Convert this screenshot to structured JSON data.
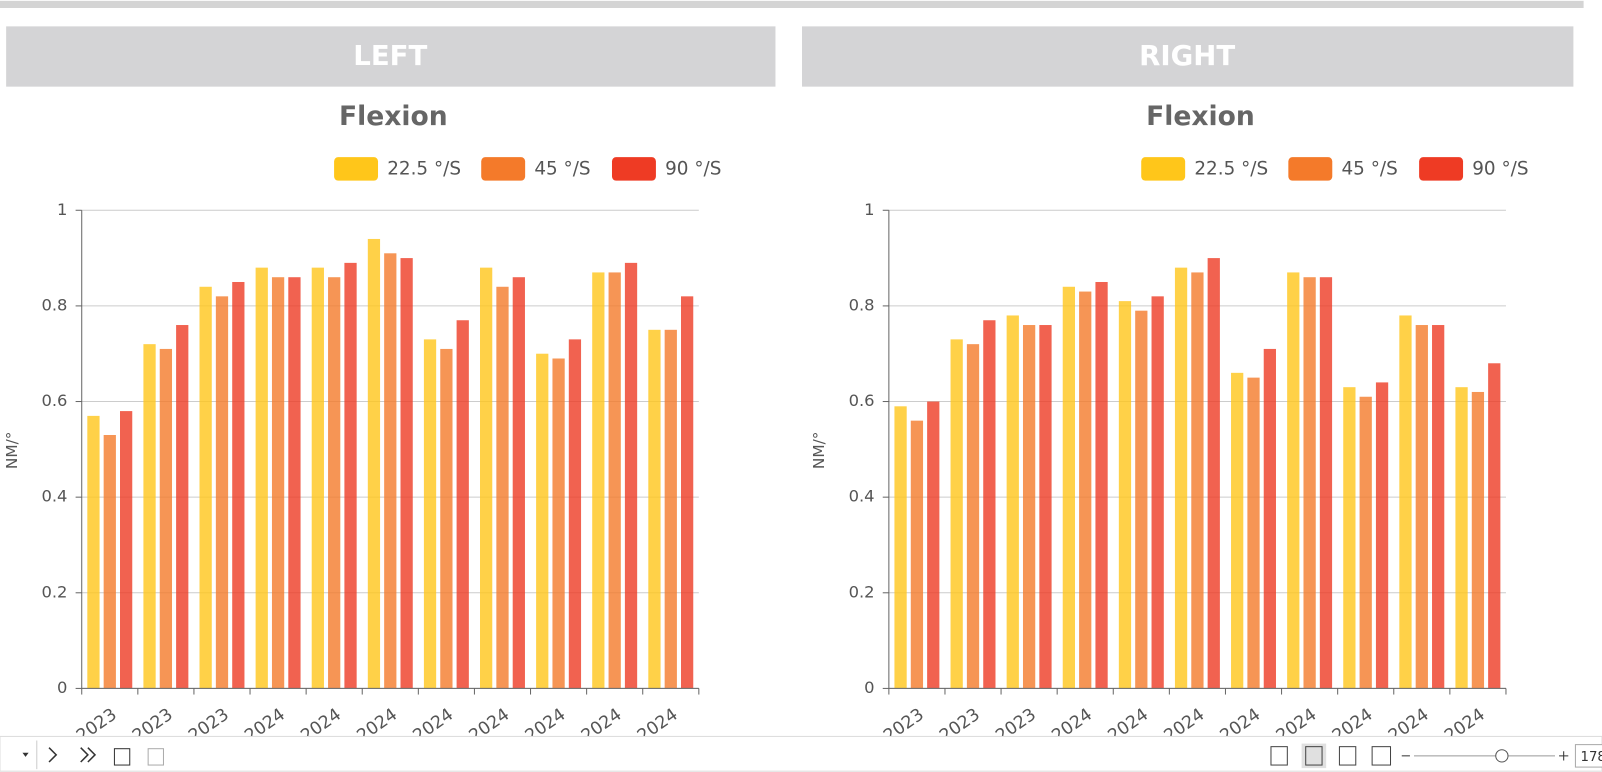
{
  "panels": [
    {
      "header": "LEFT"
    },
    {
      "header": "RIGHT"
    }
  ],
  "chart_data": [
    {
      "type": "bar",
      "title": "Flexion",
      "y_label": "NM/°",
      "categories": [
        "2023",
        "2023",
        "2023",
        "2024",
        "2024",
        "2024",
        "2024",
        "2024",
        "2024",
        "2024",
        "2024"
      ],
      "series": [
        {
          "name": "22.5 °/S",
          "color": "#ffc61a",
          "values": [
            0.57,
            0.72,
            0.84,
            0.88,
            0.88,
            0.94,
            0.73,
            0.88,
            0.7,
            0.87,
            0.75
          ]
        },
        {
          "name": "45 °/S",
          "color": "#f47a2a",
          "values": [
            0.53,
            0.71,
            0.82,
            0.86,
            0.86,
            0.91,
            0.71,
            0.84,
            0.69,
            0.87,
            0.75
          ]
        },
        {
          "name": "90 °/S",
          "color": "#ee3b24",
          "values": [
            0.58,
            0.76,
            0.85,
            0.86,
            0.89,
            0.9,
            0.77,
            0.86,
            0.73,
            0.89,
            0.82
          ]
        }
      ],
      "ylim": [
        0,
        1
      ],
      "yticks": [
        0,
        0.2,
        0.4,
        0.6,
        0.8,
        1
      ],
      "grid": true
    },
    {
      "type": "bar",
      "title": "Flexion",
      "y_label": "NM/°",
      "categories": [
        "2023",
        "2023",
        "2023",
        "2024",
        "2024",
        "2024",
        "2024",
        "2024",
        "2024",
        "2024",
        "2024"
      ],
      "series": [
        {
          "name": "22.5 °/S",
          "color": "#ffc61a",
          "values": [
            0.59,
            0.73,
            0.78,
            0.84,
            0.81,
            0.88,
            0.66,
            0.87,
            0.63,
            0.78,
            0.63
          ]
        },
        {
          "name": "45 °/S",
          "color": "#f47a2a",
          "values": [
            0.56,
            0.72,
            0.76,
            0.83,
            0.79,
            0.87,
            0.65,
            0.86,
            0.61,
            0.76,
            0.62
          ]
        },
        {
          "name": "90 °/S",
          "color": "#ee3b24",
          "values": [
            0.6,
            0.77,
            0.76,
            0.85,
            0.82,
            0.9,
            0.71,
            0.86,
            0.64,
            0.76,
            0.68
          ]
        }
      ],
      "ylim": [
        0,
        1
      ],
      "yticks": [
        0,
        0.2,
        0.4,
        0.6,
        0.8,
        1
      ],
      "grid": true
    }
  ],
  "toolbar": {
    "zoom": "178"
  }
}
